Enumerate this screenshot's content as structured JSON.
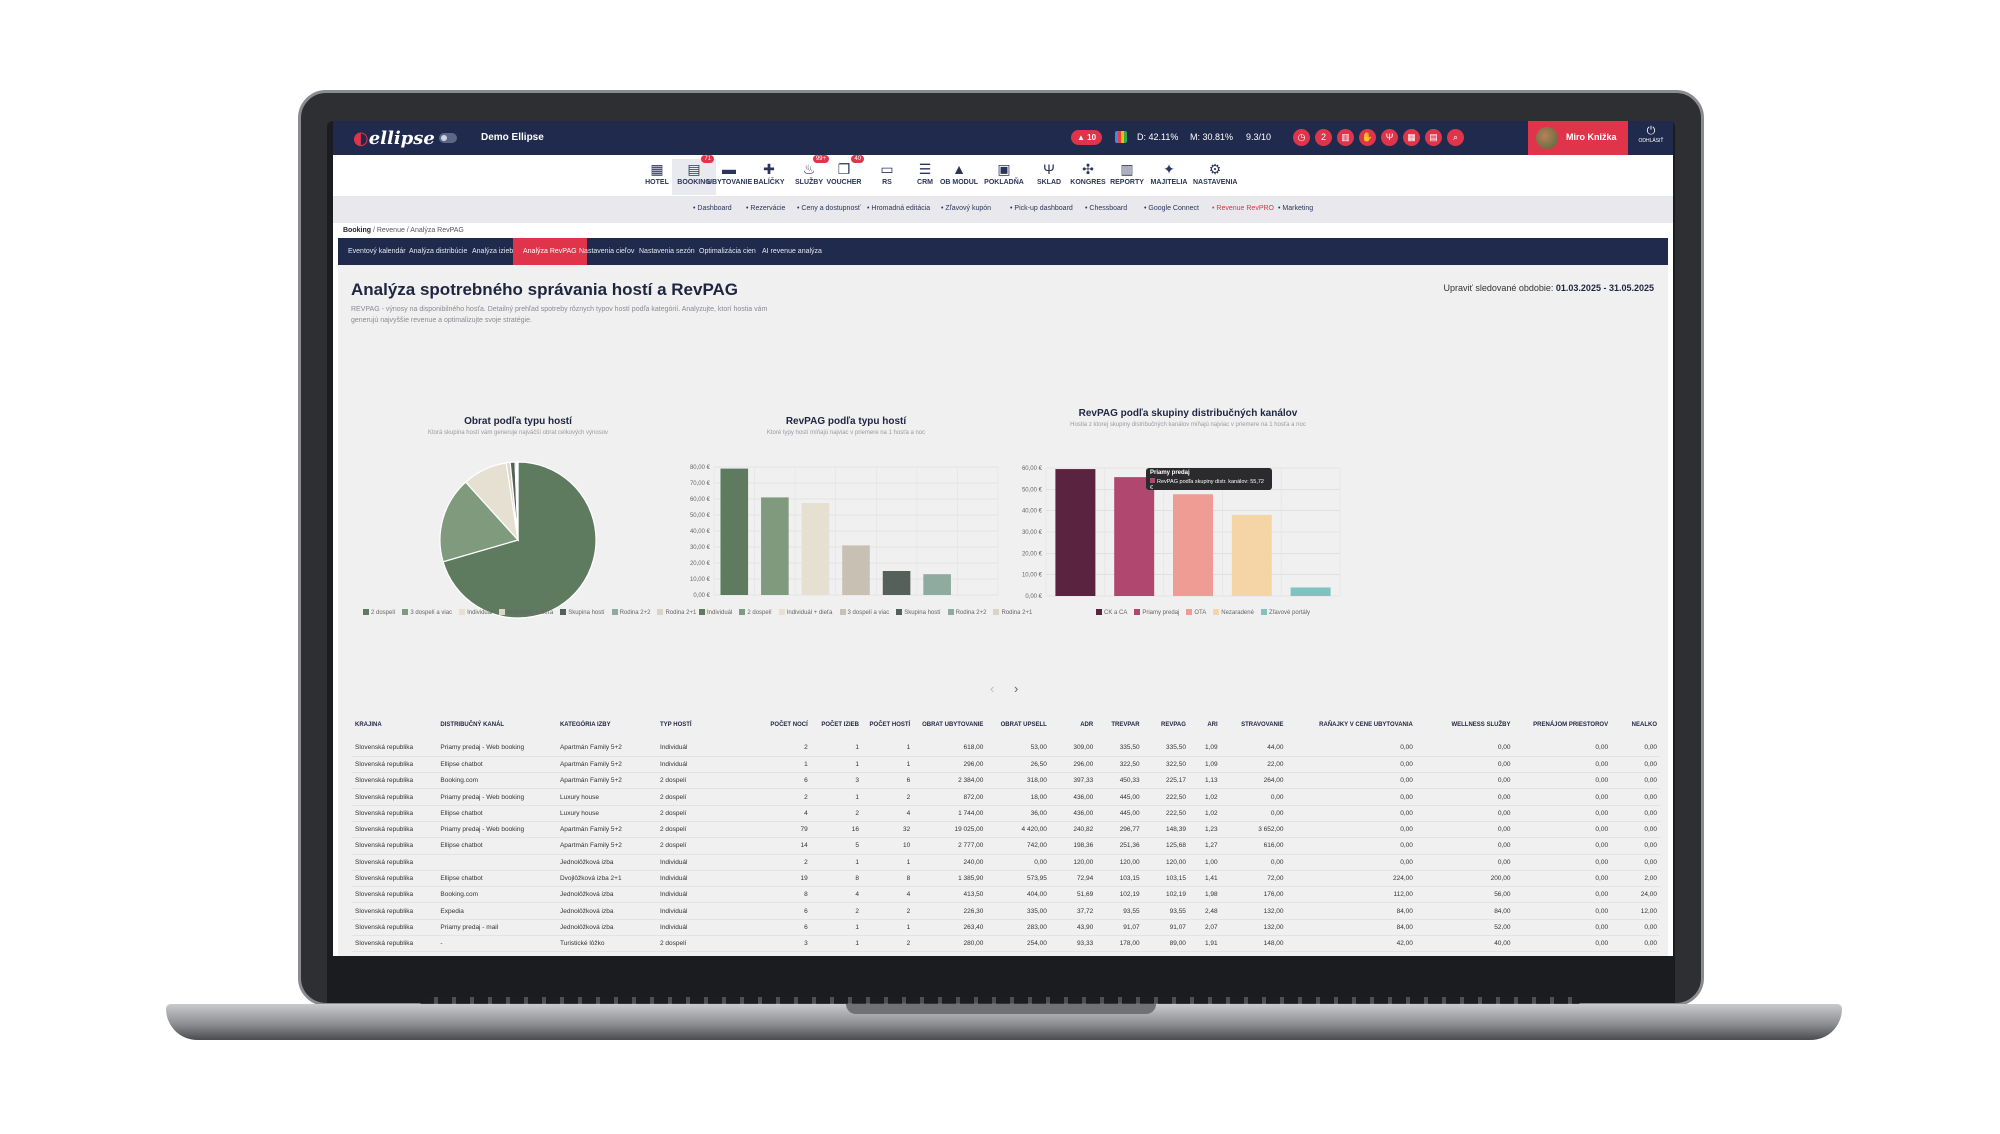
{
  "app": {
    "logo": "ellipse",
    "hotel": "Demo Ellipse",
    "alert_count": "10",
    "stats": [
      "D: 42.11%",
      "M: 30.81%",
      "9.3/10"
    ],
    "top_icons": [
      "calendar-icon",
      "notification-icon",
      "chart-icon",
      "hand-icon",
      "restaurant-icon",
      "grid-icon",
      "document-icon",
      "search-icon"
    ],
    "top_icon_badge": "2",
    "user": "Miro Knižka",
    "logout": "ODHLÁSIŤ",
    "accent": "#e0344b",
    "navy": "#1f2a4d"
  },
  "nav": [
    {
      "label": "HOTEL",
      "icon": "▦",
      "badge": ""
    },
    {
      "label": "BOOKING",
      "icon": "▤",
      "badge": "71"
    },
    {
      "label": "UBYTOVANIE",
      "icon": "▬",
      "badge": ""
    },
    {
      "label": "BALÍČKY",
      "icon": "✚",
      "badge": ""
    },
    {
      "label": "SLUŽBY",
      "icon": "♨",
      "badge": "99+"
    },
    {
      "label": "VOUCHER",
      "icon": "❐",
      "badge": "40"
    },
    {
      "label": "RS",
      "icon": "▭",
      "badge": ""
    },
    {
      "label": "CRM",
      "icon": "☰",
      "badge": ""
    },
    {
      "label": "OB MODUL",
      "icon": "▲",
      "badge": ""
    },
    {
      "label": "POKLADŇA",
      "icon": "▣",
      "badge": ""
    },
    {
      "label": "SKLAD",
      "icon": "Ψ",
      "badge": ""
    },
    {
      "label": "KONGRES",
      "icon": "✣",
      "badge": ""
    },
    {
      "label": "REPORTY",
      "icon": "▥",
      "badge": ""
    },
    {
      "label": "MAJITELIA",
      "icon": "✦",
      "badge": ""
    },
    {
      "label": "NASTAVENIA",
      "icon": "⚙",
      "badge": ""
    }
  ],
  "subnav": [
    "Dashboard",
    "Rezervácie",
    "Ceny a dostupnosť",
    "Hromadná editácia",
    "Zľavový kupón",
    "Pick-up dashboard",
    "Chessboard",
    "Google Connect",
    "Revenue RevPRO",
    "Marketing"
  ],
  "breadcrumb": {
    "root": "Booking",
    "rest": " / Revenue / Analýza RevPAG"
  },
  "tabs": [
    "Eventový kalendár",
    "Analýza distribúcie",
    "Analýza izieb",
    "Analýza RevPAG",
    "Nastavenia cieľov",
    "Nastavenia sezón",
    "Optimalizácia cien",
    "AI revenue analýza"
  ],
  "page": {
    "title": "Analýza spotrebného správania hostí a RevPAG",
    "desc": "REVPAG - výnosy na disponibilného hosťa. Detailný prehľad spotreby rôznych typov hostí podľa kategórií. Analyzujte, ktorí hostia vám generujú najvyššie revenue a optimalizujte svoje stratégie.",
    "period_label": "Upraviť sledované obdobie: ",
    "period_value": "01.03.2025 - 31.05.2025"
  },
  "charts_text": {
    "c1_title": "Obrat podľa typu hostí",
    "c1_sub": "Ktorá skupina hostí vám generuje najväčší obrat celkových výnosov",
    "c2_title": "RevPAG podľa typu hostí",
    "c2_sub": "Ktoré typy hostí míňajú najviac v priemere na 1 hosťa a noc",
    "c3_title": "RevPAG podľa skupiny distribučných kanálov",
    "c3_sub": "Hostia z ktorej skupiny distribučných kanálov míňajú najviac v priemere na 1 hosťa a noc",
    "tooltip_title": "Priamy predaj",
    "tooltip_body": "RevPAG podľa skupiny distr. kanálov: 55,72 €"
  },
  "chart_data": [
    {
      "type": "pie",
      "title": "Obrat podľa typu hostí",
      "categories": [
        "2 dospelí",
        "3 dospelí a viac",
        "Individuál",
        "Individuál + dieťa",
        "Skupina hostí",
        "Rodina 2+2",
        "Rodina 2+1",
        ""
      ],
      "values": [
        70.5,
        17.8,
        9.3,
        0.8,
        1.0,
        0.3,
        0.2,
        0.1
      ],
      "colors": [
        "#5e7a5f",
        "#7f9a7c",
        "#e6e0d2",
        "#ddd6c7",
        "#55605a",
        "#8faa9e",
        "#d9d3c4",
        "#efe9dc"
      ],
      "legend": "bottom"
    },
    {
      "type": "bar",
      "title": "RevPAG podľa typu hostí",
      "categories": [
        "Individuál",
        "2 dospelí",
        "Individuál + dieťa",
        "3 dospelí a viac",
        "Skupina hostí",
        "Rodina 2+2",
        "Rodina 2+1"
      ],
      "values": [
        79,
        61,
        57.5,
        31,
        15,
        13,
        0
      ],
      "colors": [
        "#5e7a5f",
        "#7f9a7c",
        "#e6e0d2",
        "#c9c0b4",
        "#55605a",
        "#8faa9e",
        "#d9d3c4"
      ],
      "ylim": [
        0,
        80
      ],
      "yticks": [
        "0,00 €",
        "10,00 €",
        "20,00 €",
        "30,00 €",
        "40,00 €",
        "50,00 €",
        "60,00 €",
        "70,00 €",
        "80,00 €"
      ],
      "grid": true,
      "legend": "bottom"
    },
    {
      "type": "bar",
      "title": "RevPAG podľa skupiny distribučných kanálov",
      "categories": [
        "CK a CA",
        "Priamy predaj",
        "OTA",
        "Nezaradené",
        "Zľavové portály"
      ],
      "values": [
        59.5,
        55.72,
        47.7,
        38,
        4
      ],
      "colors": [
        "#5a2340",
        "#b0476f",
        "#ef9c95",
        "#f5d5a6",
        "#7fc3c0"
      ],
      "ylim": [
        0,
        60
      ],
      "yticks": [
        "0,00 €",
        "10,00 €",
        "20,00 €",
        "30,00 €",
        "40,00 €",
        "50,00 €",
        "60,00 €"
      ],
      "grid": true,
      "legend": "bottom"
    }
  ],
  "table": {
    "headers": [
      "KRAJINA",
      "DISTRIBUČNÝ KANÁL",
      "KATEGÓRIA IZBY",
      "TYP HOSTÍ",
      "POČET NOCÍ",
      "POČET IZIEB",
      "POČET HOSTÍ",
      "OBRAT UBYTOVANIE",
      "OBRAT UPSELL",
      "ADR",
      "TREVPAR",
      "REVPAG",
      "ARI",
      "STRAVOVANIE",
      "RAŇAJKY V CENE UBYTOVANIA",
      "WELLNESS SLUŽBY",
      "PRENÁJOM PRIESTOROV",
      "NEALKO"
    ],
    "rows": [
      [
        "Slovenská republika",
        "Priamy predaj - Web booking",
        "Apartmán Family 5+2",
        "Individuál",
        "2",
        "1",
        "1",
        "618,00",
        "53,00",
        "309,00",
        "335,50",
        "335,50",
        "1,09",
        "44,00",
        "0,00",
        "0,00",
        "0,00",
        "0,00"
      ],
      [
        "Slovenská republika",
        "Ellipse chatbot",
        "Apartmán Family 5+2",
        "Individuál",
        "1",
        "1",
        "1",
        "296,00",
        "26,50",
        "296,00",
        "322,50",
        "322,50",
        "1,09",
        "22,00",
        "0,00",
        "0,00",
        "0,00",
        "0,00"
      ],
      [
        "Slovenská republika",
        "Booking.com",
        "Apartmán Family 5+2",
        "2 dospelí",
        "6",
        "3",
        "6",
        "2 384,00",
        "318,00",
        "397,33",
        "450,33",
        "225,17",
        "1,13",
        "264,00",
        "0,00",
        "0,00",
        "0,00",
        "0,00"
      ],
      [
        "Slovenská republika",
        "Priamy predaj - Web booking",
        "Luxury house",
        "2 dospelí",
        "2",
        "1",
        "2",
        "872,00",
        "18,00",
        "436,00",
        "445,00",
        "222,50",
        "1,02",
        "0,00",
        "0,00",
        "0,00",
        "0,00",
        "0,00"
      ],
      [
        "Slovenská republika",
        "Ellipse chatbot",
        "Luxury house",
        "2 dospelí",
        "4",
        "2",
        "4",
        "1 744,00",
        "36,00",
        "436,00",
        "445,00",
        "222,50",
        "1,02",
        "0,00",
        "0,00",
        "0,00",
        "0,00",
        "0,00"
      ],
      [
        "Slovenská republika",
        "Priamy predaj - Web booking",
        "Apartmán Family 5+2",
        "2 dospelí",
        "79",
        "16",
        "32",
        "19 025,00",
        "4 420,00",
        "240,82",
        "296,77",
        "148,39",
        "1,23",
        "3 652,00",
        "0,00",
        "0,00",
        "0,00",
        "0,00"
      ],
      [
        "Slovenská republika",
        "Ellipse chatbot",
        "Apartmán Family 5+2",
        "2 dospelí",
        "14",
        "5",
        "10",
        "2 777,00",
        "742,00",
        "198,36",
        "251,36",
        "125,68",
        "1,27",
        "616,00",
        "0,00",
        "0,00",
        "0,00",
        "0,00"
      ],
      [
        "Slovenská republika",
        "",
        "Jednolôžková izba",
        "Individuál",
        "2",
        "1",
        "1",
        "240,00",
        "0,00",
        "120,00",
        "120,00",
        "120,00",
        "1,00",
        "0,00",
        "0,00",
        "0,00",
        "0,00",
        "0,00"
      ],
      [
        "Slovenská republika",
        "Ellipse chatbot",
        "Dvojlôžková izba 2+1",
        "Individuál",
        "19",
        "8",
        "8",
        "1 385,90",
        "573,95",
        "72,94",
        "103,15",
        "103,15",
        "1,41",
        "72,00",
        "224,00",
        "200,00",
        "0,00",
        "2,00"
      ],
      [
        "Slovenská republika",
        "Booking.com",
        "Jednolôžková izba",
        "Individuál",
        "8",
        "4",
        "4",
        "413,50",
        "404,00",
        "51,69",
        "102,19",
        "102,19",
        "1,98",
        "176,00",
        "112,00",
        "56,00",
        "0,00",
        "24,00"
      ],
      [
        "Slovenská republika",
        "Expedia",
        "Jednolôžková izba",
        "Individuál",
        "6",
        "2",
        "2",
        "226,30",
        "335,00",
        "37,72",
        "93,55",
        "93,55",
        "2,48",
        "132,00",
        "84,00",
        "84,00",
        "0,00",
        "12,00"
      ],
      [
        "Slovenská republika",
        "Priamy predaj - mail",
        "Jednolôžková izba",
        "Individuál",
        "6",
        "1",
        "1",
        "263,40",
        "283,00",
        "43,90",
        "91,07",
        "91,07",
        "2,07",
        "132,00",
        "84,00",
        "52,00",
        "0,00",
        "0,00"
      ],
      [
        "Slovenská republika",
        "-",
        "Turistické lôžko",
        "2 dospelí",
        "3",
        "1",
        "2",
        "280,00",
        "254,00",
        "93,33",
        "178,00",
        "89,00",
        "1,91",
        "148,00",
        "42,00",
        "40,00",
        "0,00",
        "0,00"
      ]
    ]
  }
}
